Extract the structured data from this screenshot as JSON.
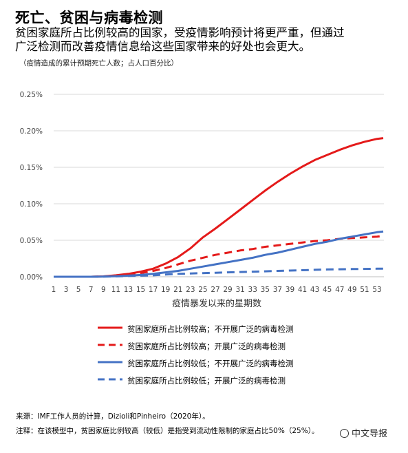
{
  "header": {
    "title": "死亡、贫困与病毒检测",
    "subtitle_line1": "贫困家庭所占比例较高的国家，受疫情影响预计将更严重，但通过",
    "subtitle_line2": "广泛检测而改善疫情信息给这些国家带来的好处也会更大。",
    "unit_note": "（疫情造成的累计预期死亡人数；占人口百分比）"
  },
  "footer": {
    "source": "来源：IMF工作人员的计算，Dizioli和Pinheiro（2020年）。",
    "note": "注释：在该模型中，贫困家庭比例较高（较低）是指受到流动性限制的家庭占比50%（25%）。",
    "watermark": "中文导报"
  },
  "colors": {
    "red": "#e41a1a",
    "blue": "#4472c4",
    "grid": "#d9d9d9",
    "axis": "#bfbfbf"
  },
  "chart_data": {
    "type": "line",
    "title": "死亡、贫困与病毒检测",
    "xlabel": "疫情暴发以来的星期数",
    "ylabel": "",
    "xlim": [
      1,
      53
    ],
    "ylim": [
      0,
      0.25
    ],
    "y_unit": "%",
    "x_ticks": [
      1,
      3,
      5,
      7,
      9,
      11,
      13,
      15,
      17,
      19,
      21,
      23,
      25,
      27,
      29,
      31,
      33,
      35,
      37,
      39,
      41,
      43,
      45,
      47,
      49,
      51,
      53
    ],
    "y_ticks": [
      0,
      0.05,
      0.1,
      0.15,
      0.2,
      0.25
    ],
    "y_tick_labels": [
      "0.00%",
      "0.05%",
      "0.10%",
      "0.15%",
      "0.20%",
      "0.25%"
    ],
    "grid": true,
    "legend_position": "bottom",
    "x": [
      1,
      3,
      5,
      7,
      9,
      11,
      13,
      15,
      17,
      19,
      21,
      23,
      25,
      27,
      29,
      31,
      33,
      35,
      37,
      39,
      41,
      43,
      45,
      47,
      49,
      51,
      53,
      54
    ],
    "series": [
      {
        "name": "贫困家庭所占比例较高；不开展广泛的病毒检测",
        "color": "#e41a1a",
        "dash": false,
        "values": [
          0,
          0,
          0,
          0,
          0.0005,
          0.002,
          0.004,
          0.007,
          0.011,
          0.018,
          0.027,
          0.039,
          0.054,
          0.066,
          0.079,
          0.092,
          0.105,
          0.118,
          0.13,
          0.141,
          0.151,
          0.16,
          0.167,
          0.174,
          0.18,
          0.185,
          0.189,
          0.19
        ]
      },
      {
        "name": "贫困家庭所占比例较高；开展广泛的病毒检测",
        "color": "#e41a1a",
        "dash": true,
        "values": [
          0,
          0,
          0,
          0,
          0.0005,
          0.0015,
          0.003,
          0.005,
          0.008,
          0.012,
          0.017,
          0.022,
          0.026,
          0.03,
          0.033,
          0.036,
          0.038,
          0.041,
          0.043,
          0.045,
          0.047,
          0.049,
          0.05,
          0.052,
          0.053,
          0.054,
          0.055,
          0.056
        ]
      },
      {
        "name": "贫困家庭所占比例较低；不开展广泛的病毒检测",
        "color": "#4472c4",
        "dash": false,
        "values": [
          0,
          0,
          0,
          0,
          0.0003,
          0.0008,
          0.0015,
          0.0025,
          0.004,
          0.006,
          0.008,
          0.011,
          0.014,
          0.017,
          0.02,
          0.023,
          0.026,
          0.03,
          0.033,
          0.037,
          0.041,
          0.045,
          0.048,
          0.052,
          0.055,
          0.058,
          0.061,
          0.062
        ]
      },
      {
        "name": "贫困家庭所占比例较低；开展广泛的病毒检测",
        "color": "#4472c4",
        "dash": true,
        "values": [
          0,
          0,
          0,
          0,
          0.0002,
          0.0005,
          0.001,
          0.0015,
          0.002,
          0.003,
          0.004,
          0.0045,
          0.005,
          0.0055,
          0.006,
          0.0065,
          0.007,
          0.0075,
          0.008,
          0.0085,
          0.009,
          0.0095,
          0.01,
          0.0103,
          0.0106,
          0.0108,
          0.011,
          0.011
        ]
      }
    ]
  }
}
